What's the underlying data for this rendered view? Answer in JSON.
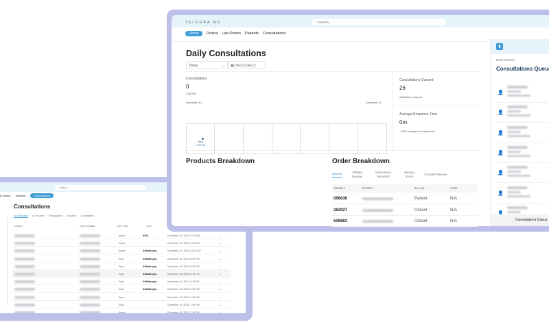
{
  "colors": {
    "frame": "#bcc0e8",
    "accent": "#3d9ad6",
    "header_bg": "#e6f3fb"
  },
  "back": {
    "search_placeholder": "Search...",
    "nav": [
      "b Orders",
      "Patients",
      "Consultations"
    ],
    "title": "Consultations",
    "tabs": [
      "All Statuses",
      "In Review",
      "Reassigned",
      "Expired",
      "Completed"
    ],
    "columns": [
      "PATIENT",
      "PRACTITIONER",
      "VISIT TYPE",
      "COST"
    ],
    "rows": [
      {
        "visit": "Async",
        "cost": "$100",
        "date": "December 12, 2024, 2:13 PM"
      },
      {
        "visit": "Async",
        "cost": "",
        "date": "December 12, 2024, 1:49 PM"
      },
      {
        "visit": "Async",
        "cost": "Affiliate pay",
        "date": "December 12, 2024, 11:19 AM"
      },
      {
        "visit": "Sync",
        "cost": "Affiliate pay",
        "date": "December 11, 2024, 8:29 PM"
      },
      {
        "visit": "Sync",
        "cost": "Affiliate pay",
        "date": "December 11, 2024, 8:19 PM"
      },
      {
        "visit": "Sync",
        "cost": "Affiliate pay",
        "date": "December 11, 2024, 8:13 PM"
      },
      {
        "visit": "Sync",
        "cost": "Affiliate pay",
        "date": "December 11, 2024, 8:13 PM"
      },
      {
        "visit": "Sync",
        "cost": "Affiliate pay",
        "date": "December 11, 2024, 8:09 PM"
      },
      {
        "visit": "Sync",
        "cost": "",
        "date": "December 11, 2024, 7:30 PM"
      },
      {
        "visit": "Sync",
        "cost": "",
        "date": "December 11, 2024, 7:30 PM"
      },
      {
        "visit": "Async",
        "cost": "",
        "date": "December 11, 2024, 7:10 PM"
      }
    ],
    "row_action": "—"
  },
  "front": {
    "logo": "TELEGRA MD",
    "search_placeholder": "Search...",
    "nav": [
      "Home",
      "Orders",
      "Lab Orders",
      "Patients",
      "Consultations"
    ],
    "title": "Daily Consultations",
    "range_select": "Today",
    "date_range": "Dec12-Dec12",
    "consultations": {
      "label": "Consultations",
      "value": "0",
      "time": "3:38 PM",
      "start": "December 12",
      "end": "December 12",
      "now_label": "Now,",
      "now_time": "3:38 PM"
    },
    "queued": {
      "label": "Consultations Queued",
      "value": "26",
      "sub": "Available to pay out"
    },
    "response": {
      "label": "Average Response Time",
      "value": "0m",
      "sub": "-100% compared to last period"
    },
    "products_title": "Products Breakdown",
    "order_title": "Order Breakdown",
    "order_tabs": [
      "Started",
      "Affiliate Review",
      "Submission Required",
      "Waiting Room",
      "Provider Review"
    ],
    "order_columns": [
      "ORDER #",
      "PATIENT",
      "BILLING",
      "COST"
    ],
    "orders": [
      {
        "id": "066836",
        "billing": "Patient",
        "cost": "N/A"
      },
      {
        "id": "262927",
        "billing": "Patient",
        "cost": "N/A"
      },
      {
        "id": "508863",
        "billing": "Patient",
        "cost": "N/A"
      }
    ]
  },
  "side": {
    "kicker": "MOST RECENT",
    "title": "Consultations Queue",
    "footer": "Consultations Queue"
  }
}
